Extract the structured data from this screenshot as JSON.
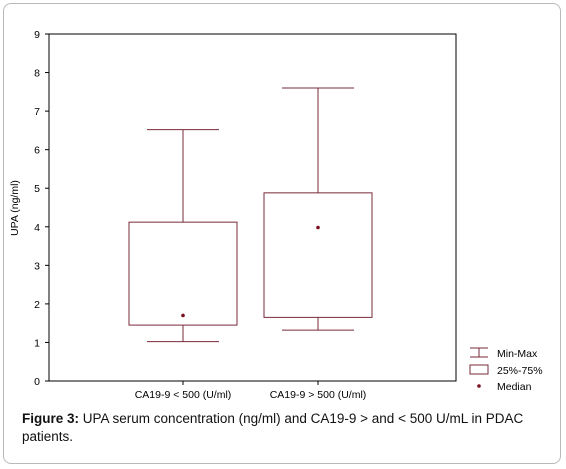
{
  "chart_data": {
    "type": "box",
    "ylabel": "UPA (ng/ml)",
    "ylim": [
      0,
      9
    ],
    "yticks": [
      "0",
      "1",
      "2",
      "3",
      "4",
      "5",
      "6",
      "7",
      "8",
      "9"
    ],
    "grid": false,
    "legend_position": "bottom-right",
    "categories": [
      "CA19-9 < 500 (U/ml)",
      "CA19-9 > 500 (U/ml)"
    ],
    "boxes": [
      {
        "min": 1.02,
        "q1": 1.45,
        "median": 1.7,
        "q3": 4.12,
        "max": 6.52
      },
      {
        "min": 1.32,
        "q1": 1.65,
        "median": 3.98,
        "q3": 4.88,
        "max": 7.6
      }
    ],
    "legend": [
      {
        "symbol": "whisker",
        "label": "Min-Max"
      },
      {
        "symbol": "box",
        "label": "25%-75%"
      },
      {
        "symbol": "dot",
        "label": "Median"
      }
    ],
    "colors": {
      "box": "#7a2a3a",
      "median": "#7a1020",
      "axis": "#000000"
    }
  },
  "caption": {
    "label": "Figure 3:",
    "text": "UPA serum concentration (ng/ml) and CA19-9 > and < 500 U/mL in PDAC patients."
  }
}
